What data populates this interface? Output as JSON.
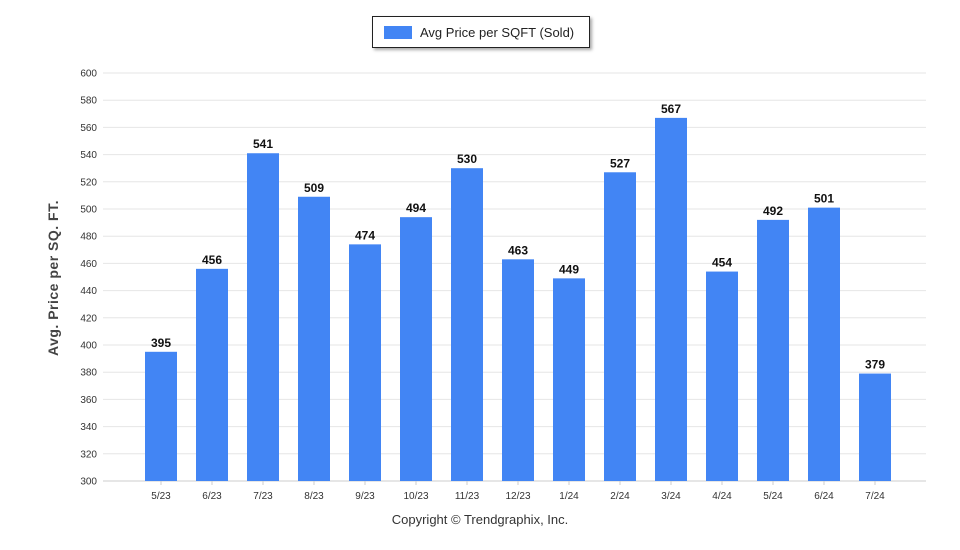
{
  "chart_data": {
    "type": "bar",
    "categories": [
      "5/23",
      "6/23",
      "7/23",
      "8/23",
      "9/23",
      "10/23",
      "11/23",
      "12/23",
      "1/24",
      "2/24",
      "3/24",
      "4/24",
      "5/24",
      "6/24",
      "7/24"
    ],
    "series": [
      {
        "name": "Avg Price per SQFT (Sold)",
        "values": [
          395,
          456,
          541,
          509,
          474,
          494,
          530,
          463,
          449,
          527,
          567,
          454,
          492,
          501,
          379
        ]
      }
    ],
    "xlabel": "",
    "ylabel": "Avg. Price per SQ. FT.",
    "ylim": [
      300,
      600
    ],
    "yticks": [
      300,
      320,
      340,
      360,
      380,
      400,
      420,
      440,
      460,
      480,
      500,
      520,
      540,
      560,
      580,
      600
    ],
    "grid": true,
    "legend_position": "top-center",
    "bar_color": "#4285f4"
  },
  "footer": {
    "copyright": "Copyright © Trendgraphix, Inc."
  }
}
